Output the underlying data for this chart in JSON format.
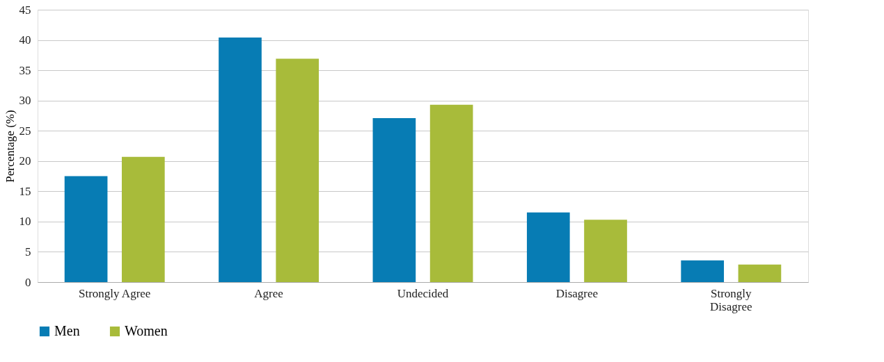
{
  "chart_data": {
    "type": "bar",
    "ylabel": "Percentage (%)",
    "categories": [
      "Strongly Agree",
      "Agree",
      "Undecided",
      "Disagree",
      "Strongly Disagree"
    ],
    "series": [
      {
        "name": "Men",
        "color": "#077cb4",
        "values": [
          17.5,
          40.4,
          27.1,
          11.5,
          3.6
        ]
      },
      {
        "name": "Women",
        "color": "#a8bb3a",
        "values": [
          20.7,
          36.9,
          29.3,
          10.3,
          2.9
        ]
      }
    ],
    "ylim": [
      0,
      45
    ],
    "yticks": [
      0,
      5,
      10,
      15,
      20,
      25,
      30,
      35,
      40,
      45
    ],
    "grid": "y",
    "legend": "bottom"
  }
}
